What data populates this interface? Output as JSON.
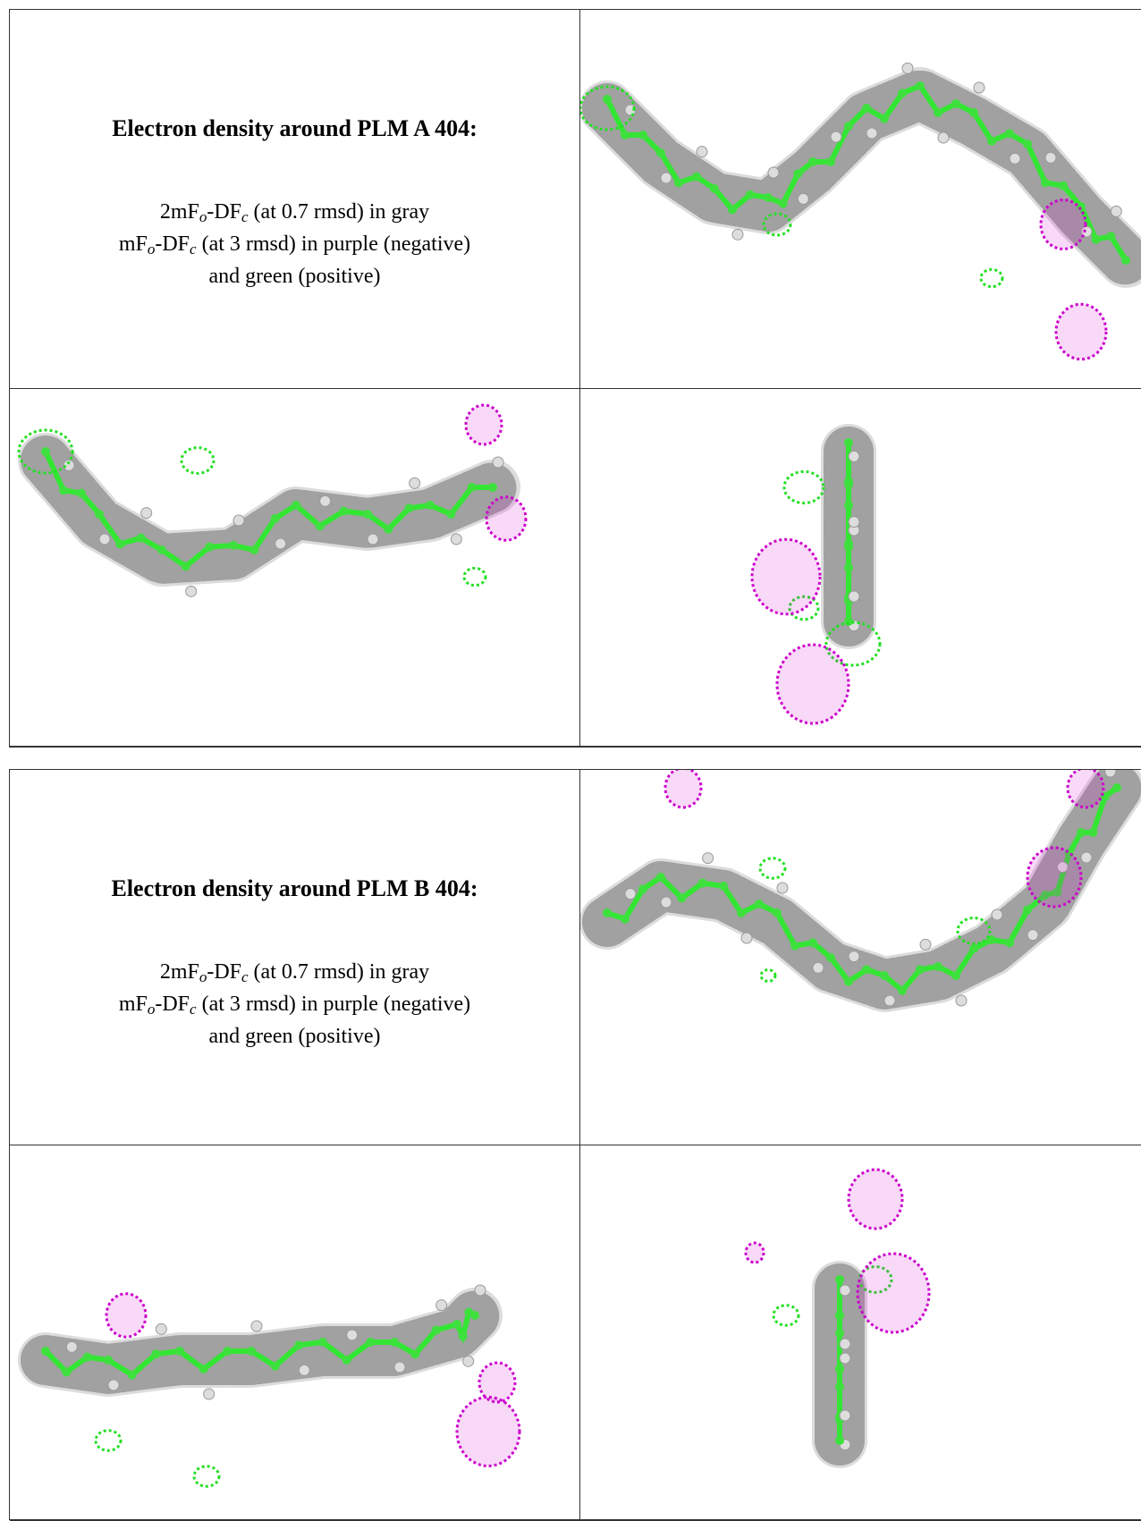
{
  "panels": [
    {
      "heading": "Electron density around PLM A 404:",
      "lines": [
        [
          "2mF",
          "o",
          "-DF",
          "c",
          " (at 0.7 rmsd) in gray"
        ],
        [
          "mF",
          "o",
          "-DF",
          "c",
          " (at 3 rmsd) in purple (negative)"
        ],
        [
          "and green (positive)"
        ]
      ]
    },
    {
      "heading": "Electron density around PLM B 404:",
      "lines": [
        [
          "2mF",
          "o",
          "-DF",
          "c",
          " (at 0.7 rmsd) in gray"
        ],
        [
          "mF",
          "o",
          "-DF",
          "c",
          " (at 3 rmsd) in purple (negative)"
        ],
        [
          "and green (positive)"
        ]
      ]
    }
  ]
}
